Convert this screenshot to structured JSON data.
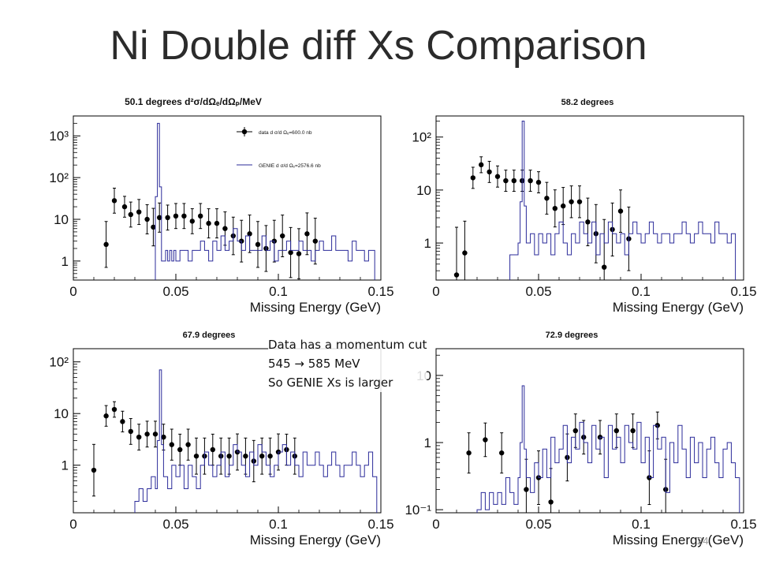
{
  "slide": {
    "title": "Ni Double diff Xs Comparison",
    "page_number": "24",
    "note_lines": [
      "Data has a momentum cut",
      "545 → 585 MeV",
      "So GENIE Xs is larger"
    ]
  },
  "colors": {
    "data": "#000000",
    "genie": "#2b2b9a",
    "frame": "#000000"
  },
  "chart_data": [
    {
      "type": "scatter",
      "title": "50.1 degrees d²σ/dΩₑ/dΩₚ/MeV",
      "xlabel": "Missing Energy (GeV)",
      "ylabel": "",
      "xlim": [
        0,
        0.15
      ],
      "ylim": [
        0.35,
        3000
      ],
      "yscale": "log",
      "x_ticks": [
        0,
        0.05,
        0.1,
        0.15
      ],
      "x_tick_labels": [
        "0",
        "0.05",
        "0.1",
        "0.15"
      ],
      "y_ticks": [
        1,
        10,
        100,
        1000
      ],
      "y_tick_labels": [
        "1",
        "10",
        "10²",
        "10³"
      ],
      "legend": {
        "position": "top-right",
        "entries": [
          "data d σ/d Ωₑ=600.0 nb",
          "GENIE d σ/d Ωₑ=2576.6 nb"
        ]
      },
      "series": [
        {
          "name": "data",
          "kind": "points",
          "x": [
            0.016,
            0.02,
            0.025,
            0.028,
            0.032,
            0.036,
            0.039,
            0.042,
            0.046,
            0.05,
            0.054,
            0.058,
            0.062,
            0.066,
            0.07,
            0.074,
            0.078,
            0.082,
            0.086,
            0.09,
            0.094,
            0.098,
            0.102,
            0.106,
            0.11,
            0.114,
            0.118
          ],
          "y": [
            2.5,
            28,
            20,
            13,
            15,
            10,
            6.5,
            11,
            11,
            12,
            12,
            9,
            12,
            8,
            8,
            6,
            4,
            3,
            4.5,
            2.5,
            2,
            3,
            4,
            1.6,
            1.5,
            4.5,
            3
          ],
          "err": [
            0.55,
            0.3,
            0.25,
            0.3,
            0.3,
            0.35,
            0.45,
            0.35,
            0.3,
            0.3,
            0.3,
            0.3,
            0.3,
            0.35,
            0.35,
            0.4,
            0.45,
            0.5,
            0.45,
            0.55,
            0.55,
            0.5,
            0.5,
            0.6,
            0.6,
            0.5,
            0.55
          ]
        },
        {
          "name": "GENIE",
          "kind": "step",
          "x": [
            0.04,
            0.041,
            0.042,
            0.043,
            0.044,
            0.045,
            0.046,
            0.047,
            0.048,
            0.049,
            0.05,
            0.052,
            0.054,
            0.056,
            0.058,
            0.06,
            0.062,
            0.064,
            0.066,
            0.068,
            0.07,
            0.072,
            0.074,
            0.076,
            0.078,
            0.08,
            0.082,
            0.084,
            0.086,
            0.088,
            0.09,
            0.092,
            0.094,
            0.096,
            0.098,
            0.1,
            0.102,
            0.104,
            0.106,
            0.108,
            0.11,
            0.112,
            0.114,
            0.116,
            0.118,
            0.12,
            0.122,
            0.124,
            0.126,
            0.128,
            0.13,
            0.132,
            0.134,
            0.136,
            0.138,
            0.14,
            0.142,
            0.144,
            0.146
          ],
          "y": [
            35,
            2000,
            60,
            1,
            1,
            1.8,
            1,
            1.8,
            1,
            1.8,
            1,
            1.8,
            1.8,
            1,
            1.8,
            1.8,
            3,
            1.8,
            1,
            3,
            1.8,
            4,
            1.8,
            3,
            6,
            3,
            1.8,
            4,
            1.8,
            1.8,
            1.8,
            4,
            1.8,
            3,
            1,
            1.8,
            1.8,
            3,
            1.8,
            1.8,
            3,
            1.8,
            1.8,
            1,
            1.8,
            3,
            1.8,
            1.8,
            4,
            1.8,
            1.8,
            1.8,
            1,
            3,
            1.8,
            1.8,
            1,
            1.8,
            1.8
          ]
        }
      ]
    },
    {
      "type": "scatter",
      "title": "58.2 degrees",
      "xlabel": "Missing Energy (GeV)",
      "ylabel": "",
      "xlim": [
        0,
        0.15
      ],
      "ylim": [
        0.2,
        250
      ],
      "yscale": "log",
      "x_ticks": [
        0,
        0.05,
        0.1,
        0.15
      ],
      "x_tick_labels": [
        "0",
        "0.05",
        "0.1",
        "0.15"
      ],
      "y_ticks": [
        1,
        10,
        100
      ],
      "y_tick_labels": [
        "1",
        "10",
        "10²"
      ],
      "series": [
        {
          "name": "data",
          "kind": "points",
          "x": [
            0.01,
            0.014,
            0.018,
            0.022,
            0.026,
            0.03,
            0.034,
            0.038,
            0.042,
            0.046,
            0.05,
            0.054,
            0.058,
            0.062,
            0.066,
            0.07,
            0.074,
            0.078,
            0.082,
            0.086,
            0.09,
            0.094
          ],
          "y": [
            0.25,
            0.65,
            17,
            30,
            22,
            18,
            15,
            15,
            15,
            15,
            14,
            7,
            4.5,
            5,
            6,
            6,
            2.5,
            1.5,
            0.35,
            1.8,
            4,
            1.2
          ],
          "err": [
            0.9,
            0.6,
            0.2,
            0.15,
            0.2,
            0.2,
            0.2,
            0.2,
            0.2,
            0.2,
            0.2,
            0.3,
            0.35,
            0.35,
            0.3,
            0.3,
            0.45,
            0.55,
            0.9,
            0.5,
            0.4,
            0.6
          ]
        },
        {
          "name": "GENIE",
          "kind": "step",
          "x": [
            0.036,
            0.038,
            0.04,
            0.041,
            0.042,
            0.043,
            0.044,
            0.046,
            0.048,
            0.05,
            0.052,
            0.054,
            0.056,
            0.058,
            0.06,
            0.062,
            0.064,
            0.066,
            0.068,
            0.07,
            0.072,
            0.074,
            0.076,
            0.078,
            0.08,
            0.082,
            0.084,
            0.086,
            0.088,
            0.09,
            0.092,
            0.094,
            0.096,
            0.098,
            0.1,
            0.102,
            0.104,
            0.106,
            0.108,
            0.11,
            0.112,
            0.114,
            0.116,
            0.118,
            0.12,
            0.122,
            0.124,
            0.126,
            0.128,
            0.13,
            0.132,
            0.134,
            0.136,
            0.138,
            0.14,
            0.142,
            0.144
          ],
          "y": [
            0.6,
            0.6,
            1,
            6,
            200,
            5,
            1,
            1.5,
            0.6,
            1.5,
            1,
            1.5,
            0.6,
            1.5,
            2.5,
            1,
            0.6,
            1.5,
            1,
            2.5,
            1.5,
            1,
            2.5,
            0.6,
            1.5,
            1,
            2.5,
            1.5,
            1,
            1.5,
            0.6,
            1.5,
            2.5,
            1.5,
            1,
            1.5,
            2.5,
            1.5,
            1,
            1.5,
            1.5,
            1,
            1.5,
            1.5,
            2.5,
            1.5,
            1,
            1.5,
            2.5,
            1.5,
            1.5,
            1,
            2.5,
            1.5,
            1.5,
            1,
            1.5
          ]
        }
      ]
    },
    {
      "type": "scatter",
      "title": "67.9 degrees",
      "xlabel": "Missing Energy (GeV)",
      "ylabel": "",
      "xlim": [
        0,
        0.15
      ],
      "ylim": [
        0.12,
        180
      ],
      "yscale": "log",
      "x_ticks": [
        0,
        0.05,
        0.1,
        0.15
      ],
      "x_tick_labels": [
        "0",
        "0.05",
        "0.1",
        "0.15"
      ],
      "y_ticks": [
        1,
        10,
        100
      ],
      "y_tick_labels": [
        "1",
        "10",
        "10²"
      ],
      "series": [
        {
          "name": "data",
          "kind": "points",
          "x": [
            0.01,
            0.016,
            0.02,
            0.024,
            0.028,
            0.032,
            0.036,
            0.04,
            0.044,
            0.048,
            0.052,
            0.056,
            0.06,
            0.064,
            0.068,
            0.072,
            0.076,
            0.08,
            0.084,
            0.088,
            0.092,
            0.096,
            0.1,
            0.104,
            0.108
          ],
          "y": [
            0.8,
            9,
            12,
            7,
            4.5,
            3.5,
            4,
            4,
            3.5,
            2.5,
            2,
            2.5,
            1.5,
            1.5,
            2,
            1.5,
            1.5,
            1.8,
            1.5,
            1.2,
            1.5,
            1.5,
            1.8,
            2,
            1.5
          ],
          "err": [
            0.5,
            0.2,
            0.15,
            0.2,
            0.25,
            0.25,
            0.25,
            0.25,
            0.25,
            0.3,
            0.3,
            0.3,
            0.35,
            0.35,
            0.3,
            0.35,
            0.35,
            0.35,
            0.35,
            0.4,
            0.35,
            0.35,
            0.35,
            0.3,
            0.35
          ]
        },
        {
          "name": "GENIE",
          "kind": "step",
          "x": [
            0.03,
            0.032,
            0.034,
            0.036,
            0.038,
            0.04,
            0.041,
            0.042,
            0.043,
            0.044,
            0.046,
            0.048,
            0.05,
            0.052,
            0.054,
            0.056,
            0.058,
            0.06,
            0.062,
            0.064,
            0.066,
            0.068,
            0.07,
            0.072,
            0.074,
            0.076,
            0.078,
            0.08,
            0.082,
            0.084,
            0.086,
            0.088,
            0.09,
            0.092,
            0.094,
            0.096,
            0.098,
            0.1,
            0.102,
            0.104,
            0.106,
            0.108,
            0.11,
            0.112,
            0.114,
            0.116,
            0.118,
            0.12,
            0.122,
            0.124,
            0.126,
            0.128,
            0.13,
            0.132,
            0.134,
            0.136,
            0.138,
            0.14,
            0.142,
            0.144,
            0.146
          ],
          "y": [
            0.2,
            0.35,
            0.2,
            0.35,
            0.6,
            0.35,
            3,
            70,
            2.5,
            0.6,
            0.35,
            1,
            0.6,
            1,
            0.35,
            1,
            0.6,
            0.35,
            1,
            1.8,
            1,
            0.6,
            1,
            1.8,
            0.6,
            1,
            2.5,
            1.8,
            1,
            0.6,
            1.8,
            1,
            2.5,
            1.8,
            1,
            0.6,
            1,
            1.8,
            2.5,
            1,
            1.8,
            1,
            0.6,
            1.8,
            1,
            1,
            1.8,
            1,
            0.6,
            1,
            1.8,
            1,
            0.6,
            1,
            1,
            1.8,
            1,
            0.6,
            1,
            1.8,
            0.6
          ]
        }
      ]
    },
    {
      "type": "scatter",
      "title": "72.9 degrees",
      "xlabel": "Missing Energy (GeV)",
      "ylabel": "",
      "xlim": [
        0,
        0.15
      ],
      "ylim": [
        0.09,
        25
      ],
      "yscale": "log",
      "x_ticks": [
        0,
        0.05,
        0.1,
        0.15
      ],
      "x_tick_labels": [
        "0",
        "0.05",
        "0.1",
        "0.15"
      ],
      "y_ticks": [
        0.1,
        1,
        10
      ],
      "y_tick_labels": [
        "10⁻¹",
        "1",
        "10"
      ],
      "series": [
        {
          "name": "data",
          "kind": "points",
          "x": [
            0.016,
            0.024,
            0.032,
            0.044,
            0.05,
            0.056,
            0.064,
            0.068,
            0.072,
            0.08,
            0.088,
            0.096,
            0.104,
            0.108,
            0.112
          ],
          "y": [
            0.7,
            1.1,
            0.7,
            0.2,
            0.3,
            0.13,
            0.6,
            1.5,
            1.2,
            1.2,
            1.5,
            1.5,
            0.3,
            1.8,
            0.2
          ],
          "err": [
            0.3,
            0.25,
            0.3,
            0.45,
            0.4,
            0.5,
            0.35,
            0.25,
            0.25,
            0.25,
            0.25,
            0.25,
            0.4,
            0.2,
            0.45
          ]
        },
        {
          "name": "GENIE",
          "kind": "step",
          "x": [
            0.02,
            0.022,
            0.024,
            0.026,
            0.028,
            0.03,
            0.032,
            0.034,
            0.036,
            0.038,
            0.04,
            0.041,
            0.042,
            0.043,
            0.044,
            0.046,
            0.048,
            0.05,
            0.052,
            0.054,
            0.056,
            0.058,
            0.06,
            0.062,
            0.064,
            0.066,
            0.068,
            0.07,
            0.072,
            0.074,
            0.076,
            0.078,
            0.08,
            0.082,
            0.084,
            0.086,
            0.088,
            0.09,
            0.092,
            0.094,
            0.096,
            0.098,
            0.1,
            0.102,
            0.104,
            0.106,
            0.108,
            0.11,
            0.112,
            0.114,
            0.116,
            0.118,
            0.12,
            0.122,
            0.124,
            0.126,
            0.128,
            0.13,
            0.132,
            0.134,
            0.136,
            0.138,
            0.14,
            0.142,
            0.144,
            0.146
          ],
          "y": [
            0.1,
            0.18,
            0.1,
            0.18,
            0.12,
            0.18,
            0.12,
            0.3,
            0.18,
            0.12,
            0.3,
            1,
            7,
            0.8,
            0.3,
            0.18,
            0.5,
            0.3,
            0.8,
            0.3,
            1.2,
            0.5,
            0.8,
            1.8,
            0.5,
            1.2,
            0.8,
            2,
            1,
            0.5,
            1.8,
            0.8,
            1.2,
            0.3,
            1.8,
            0.8,
            1.2,
            0.5,
            1.8,
            1,
            0.8,
            2,
            0.5,
            1.2,
            0.3,
            1.8,
            0.8,
            1.2,
            0.18,
            1,
            0.5,
            1.8,
            0.8,
            0.3,
            1.2,
            0.5,
            1,
            0.3,
            0.8,
            1.2,
            0.5,
            0.3,
            0.8,
            1,
            0.5,
            0.3
          ]
        }
      ]
    }
  ]
}
